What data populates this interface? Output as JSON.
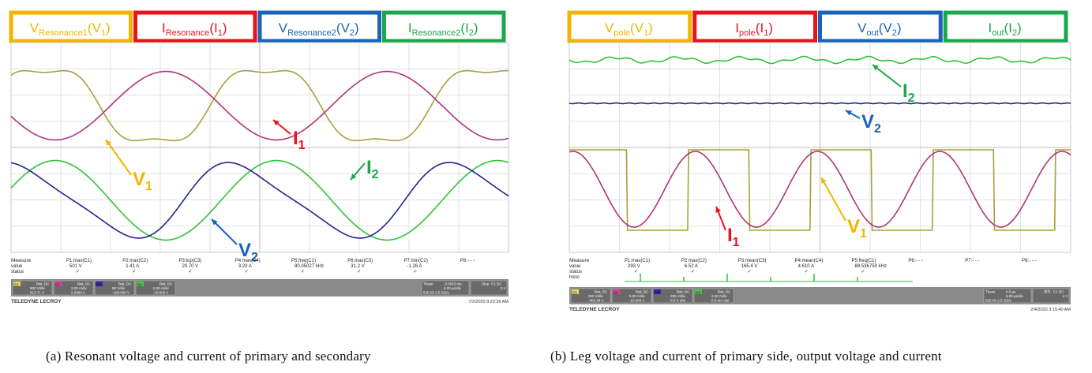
{
  "chart_data": [
    {
      "type": "line",
      "caption": "(a) Resonant voltage and current of primary and secondary",
      "legend_boxes": [
        {
          "main": "V",
          "sub": "Resonance1",
          "suffix": "(V",
          "suffix_sub": "1",
          "close": ")",
          "color": "#f2b400"
        },
        {
          "main": "I",
          "sub": "Resonance",
          "suffix": "(I",
          "suffix_sub": "1",
          "close": ")",
          "color": "#e8141c"
        },
        {
          "main": "V",
          "sub": "Resonance2",
          "suffix": "(V",
          "suffix_sub": "2",
          "close": ")",
          "color": "#1a63b8"
        },
        {
          "main": "I",
          "sub": "Resonance2",
          "suffix": "(I",
          "suffix_sub": "2",
          "close": ")",
          "color": "#1aa84a"
        }
      ],
      "annotations": [
        {
          "text": "I",
          "sub": "1",
          "color": "#e8141c"
        },
        {
          "text": "V",
          "sub": "1",
          "color": "#f2b400"
        },
        {
          "text": "I",
          "sub": "2",
          "color": "#1aa84a"
        },
        {
          "text": "V",
          "sub": "2",
          "color": "#1a63b8"
        }
      ],
      "series": [
        {
          "key": "V1",
          "color": "#a6a23a",
          "cycles": 2.25,
          "phase": 0.1,
          "center": 0.5,
          "amp": 0.86,
          "lane": "top",
          "shape": "triangle-ish"
        },
        {
          "key": "I1",
          "color": "#b2337a",
          "cycles": 2.25,
          "phase": 0.55,
          "center": 0.5,
          "amp": 0.62,
          "lane": "top",
          "shape": "sine"
        },
        {
          "key": "I2",
          "color": "#30c23a",
          "cycles": 2.25,
          "phase": 0.05,
          "center": 0.5,
          "amp": 0.72,
          "lane": "bottom",
          "shape": "sine"
        },
        {
          "key": "V2",
          "color": "#23238f",
          "cycles": 2.25,
          "phase": 0.22,
          "center": 0.5,
          "amp": 0.72,
          "lane": "bottom",
          "shape": "flat-sine"
        }
      ],
      "measure": {
        "header": "Measure",
        "row_labels": [
          "value",
          "status"
        ],
        "columns": [
          {
            "name": "P1:max(C1)",
            "value": "501 V",
            "status": "✓"
          },
          {
            "name": "P2:max(C2)",
            "value": "1.41 A",
            "status": "✓"
          },
          {
            "name": "P3:top(C3)",
            "value": "20.70 V",
            "status": "✓"
          },
          {
            "name": "P4:max(C4)",
            "value": "3.20 A",
            "status": "✓"
          },
          {
            "name": "P5:freq(C1)",
            "value": "80.05027 kHz",
            "status": "✓"
          },
          {
            "name": "P6:max(C3)",
            "value": "31.2 V",
            "status": "✓"
          },
          {
            "name": "P7:min(C2)",
            "value": "-1.26 A",
            "status": "✓"
          },
          {
            "name": "P8:- - -",
            "value": "",
            "status": ""
          }
        ]
      },
      "channels": [
        {
          "id": "C1",
          "color": "#e5d85a",
          "line1": "BwL DC",
          "line2": "500 V/div",
          "line3": "513.71 V"
        },
        {
          "id": "C2",
          "color": "#d8439a",
          "line1": "BwL DC",
          "line2": "2.00 A/div",
          "line3": "2.0000 A"
        },
        {
          "id": "C3",
          "color": "#2c2cb0",
          "line1": "BwL DC",
          "line2": "50 V/div",
          "line3": "-100.088 V"
        },
        {
          "id": "C4",
          "color": "#48c848",
          "line1": "BwL DC",
          "line2": "5.00 A/div",
          "line3": "-10.000 A"
        }
      ],
      "timebase": {
        "label": "Tbase",
        "offset": "-2.0010 ms",
        "div": "5.00 µs/div",
        "rate": "525 kS 2.5 GS/s"
      },
      "trigger": {
        "label": "C1 DC",
        "level": "0 V",
        "mode": "Stop"
      },
      "brand": "TELEDYNE LECROY",
      "timestamp": "7/2/2020 9:22:36 AM"
    },
    {
      "type": "line",
      "caption": "(b) Leg voltage and current of primary side, output voltage and current",
      "legend_boxes": [
        {
          "main": "V",
          "sub": "pole",
          "suffix": "(V",
          "suffix_sub": "1",
          "close": ")",
          "color": "#f2b400"
        },
        {
          "main": "I",
          "sub": "pole",
          "suffix": "(I",
          "suffix_sub": "1",
          "close": ")",
          "color": "#e8141c"
        },
        {
          "main": "V",
          "sub": "out",
          "suffix": "(V",
          "suffix_sub": "2",
          "close": ")",
          "color": "#1a63b8"
        },
        {
          "main": "I",
          "sub": "out",
          "suffix": "(I",
          "suffix_sub": "2",
          "close": ")",
          "color": "#1aa84a"
        }
      ],
      "annotations": [
        {
          "text": "I",
          "sub": "2",
          "color": "#1aa84a"
        },
        {
          "text": "V",
          "sub": "2",
          "color": "#1a63b8"
        },
        {
          "text": "V",
          "sub": "1",
          "color": "#f2b400"
        },
        {
          "text": "I",
          "sub": "1",
          "color": "#e8141c"
        }
      ],
      "series": [
        {
          "key": "I2",
          "color": "#30c23a",
          "shape": "ripple"
        },
        {
          "key": "V2",
          "color": "#23238f",
          "shape": "flat"
        },
        {
          "key": "V1",
          "color": "#a6a23a",
          "cycles": 4.1,
          "shape": "square"
        },
        {
          "key": "I1",
          "color": "#b2337a",
          "cycles": 4.1,
          "shape": "sine"
        }
      ],
      "measure": {
        "header": "Measure",
        "row_labels": [
          "value",
          "status",
          "histo"
        ],
        "columns": [
          {
            "name": "P1:max(C1)",
            "value": "293 V",
            "status": "✓"
          },
          {
            "name": "P2:max(C2)",
            "value": "6.52 A",
            "status": "✓"
          },
          {
            "name": "P3:mean(C3)",
            "value": "165.4 V",
            "status": "✓"
          },
          {
            "name": "P4:mean(C4)",
            "value": "4.610 A",
            "status": "✓"
          },
          {
            "name": "P5:freq(C1)",
            "value": "88.536759 kHz",
            "status": "✓"
          },
          {
            "name": "P6:- - -",
            "value": "",
            "status": ""
          },
          {
            "name": "P7:- - -",
            "value": "",
            "status": ""
          },
          {
            "name": "P8:- - -",
            "value": "",
            "status": ""
          }
        ]
      },
      "channels": [
        {
          "id": "C1",
          "color": "#e5d85a",
          "line1": "BwL DC",
          "line2": "200 V/div",
          "line3": "-402.49 V"
        },
        {
          "id": "C2",
          "color": "#d8439a",
          "line1": "BwL DC",
          "line2": "5.00 A/div",
          "line3": "-10.000 A"
        },
        {
          "id": "C3",
          "color": "#2c2cb0",
          "line1": "BwL DC",
          "line2": "200 V/div",
          "line3": "0.0 V ofst"
        },
        {
          "id": "C4",
          "color": "#48c848",
          "line1": "BwL DC",
          "line2": "2.00 A/div",
          "line3": "0.0 mA ofst"
        }
      ],
      "timebase": {
        "label": "Tbase",
        "offset": "0.0 µs",
        "div": "5.00 µs/div",
        "rate": "525 kS 2.5 GS/s"
      },
      "trigger": {
        "label": "C1 DC",
        "level": "4 V",
        "mode": "정지"
      },
      "brand": "TELEDYNE LECROY",
      "timestamp": "2/4/2020 3:15:40 AM"
    }
  ]
}
